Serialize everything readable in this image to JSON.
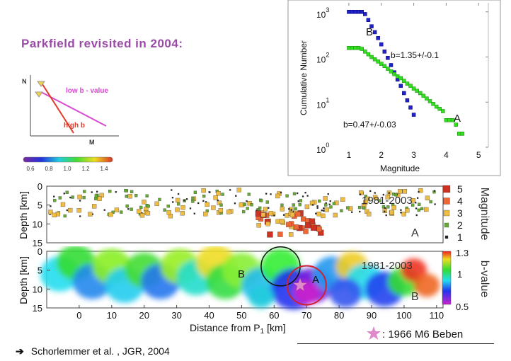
{
  "title": "Parkfield revisited in 2004:",
  "citation": "Schorlemmer et al. , JGR, 2004",
  "citation_arrow": "➔",
  "legend_1966": ": 1966 M6 Beben",
  "colors": {
    "title": "#9b4aa8",
    "seriesB": "#2222cc",
    "seriesA": "#33dd22",
    "lowb": "#d84ad0",
    "highb": "#e23a2a"
  },
  "schematic": {
    "y_label": "N",
    "x_label": "M",
    "low_b_label": "low b - value",
    "high_b_label": "high b",
    "colorbar_ticks": [
      "0.6",
      "0.8",
      "1.0",
      "1.2",
      "1.4"
    ]
  },
  "chart_data": [
    {
      "type": "scatter",
      "title": "",
      "xlabel": "Magnitude",
      "ylabel": "Cumulative Number",
      "xlim": [
        0.5,
        5.3
      ],
      "ylim_log10": [
        0,
        3.2
      ],
      "xticks": [
        "1",
        "2",
        "3",
        "4",
        "5"
      ],
      "yticks": [
        {
          "base": "10",
          "exp": "0"
        },
        {
          "base": "10",
          "exp": "1"
        },
        {
          "base": "10",
          "exp": "2"
        },
        {
          "base": "10",
          "exp": "3"
        }
      ],
      "series": [
        {
          "name": "B",
          "annotation": "b=1.35+/-0.1",
          "x": [
            1.0,
            1.1,
            1.2,
            1.3,
            1.4,
            1.5,
            1.6,
            1.7,
            1.8,
            1.9,
            2.0,
            2.1,
            2.2,
            2.3,
            2.4,
            2.5,
            2.6,
            2.7,
            2.8,
            2.9,
            3.0
          ],
          "log10N": [
            3.0,
            3.0,
            3.0,
            3.0,
            3.0,
            2.95,
            2.82,
            2.68,
            2.55,
            2.42,
            2.28,
            2.12,
            1.98,
            1.82,
            1.66,
            1.5,
            1.36,
            1.2,
            1.04,
            0.88,
            0.72
          ]
        },
        {
          "name": "A",
          "annotation": "b=0.47+/-0.03",
          "x": [
            1.0,
            1.1,
            1.2,
            1.3,
            1.4,
            1.5,
            1.6,
            1.7,
            1.8,
            1.9,
            2.0,
            2.1,
            2.2,
            2.3,
            2.4,
            2.5,
            2.6,
            2.7,
            2.8,
            2.9,
            3.0,
            3.1,
            3.2,
            3.3,
            3.4,
            3.5,
            3.6,
            3.7,
            3.8,
            3.9,
            4.0,
            4.1,
            4.2,
            4.3,
            4.4,
            4.5
          ],
          "log10N": [
            2.2,
            2.2,
            2.2,
            2.2,
            2.18,
            2.12,
            2.06,
            2.0,
            1.95,
            1.9,
            1.85,
            1.8,
            1.74,
            1.68,
            1.62,
            1.57,
            1.53,
            1.47,
            1.41,
            1.36,
            1.3,
            1.25,
            1.2,
            1.14,
            1.08,
            1.02,
            0.96,
            0.9,
            0.85,
            0.8,
            0.6,
            0.6,
            0.6,
            0.5,
            0.3,
            0.3
          ]
        }
      ]
    },
    {
      "type": "scatter",
      "title": "1981-2003",
      "panel_label": "A",
      "ylabel": "Depth [km]",
      "xlim": [
        -10,
        112
      ],
      "ylim": [
        15,
        0
      ],
      "yticks": [
        "0",
        "5",
        "10",
        "15"
      ],
      "magnitude_legend_title": "Magnitude",
      "magnitude_legend": [
        {
          "label": "5",
          "color": "#cc3322"
        },
        {
          "label": "4",
          "color": "#ee6633"
        },
        {
          "label": "3",
          "color": "#eebb44"
        },
        {
          "label": "2",
          "color": "#66aa33"
        },
        {
          "label": "1",
          "color": "#222222"
        }
      ],
      "cluster_summary": [
        {
          "x_range": [
            -9,
            110
          ],
          "depth_range": [
            1,
            8
          ],
          "magnitudes": [
            1,
            2,
            3
          ]
        },
        {
          "x_range": [
            55,
            75
          ],
          "depth_range": [
            7,
            13
          ],
          "magnitudes": [
            3,
            4,
            5
          ]
        }
      ]
    },
    {
      "type": "heatmap",
      "title": "1981-2003",
      "panel_label": "B",
      "xlabel": "Distance from P",
      "xlabel_sub": "1",
      "xlabel_unit": "[km]",
      "ylabel": "Depth [km]",
      "xticks": [
        "0",
        "10",
        "20",
        "30",
        "40",
        "50",
        "60",
        "70",
        "80",
        "90",
        "100",
        "110"
      ],
      "yticks": [
        "0",
        "5",
        "10",
        "15"
      ],
      "xlim": [
        -10,
        112
      ],
      "ylim": [
        15,
        0
      ],
      "colorbar_title": "b-value",
      "colorbar_ticks": [
        "1.3",
        "1",
        "0.5"
      ],
      "circle_labels": [
        "B",
        "A"
      ],
      "circle_B": {
        "x": 62,
        "depth": 4,
        "radius_km": 6
      },
      "circle_A": {
        "x": 70,
        "depth": 9,
        "radius_km": 6
      },
      "event_1966": {
        "x": 68,
        "depth": 9
      }
    }
  ]
}
